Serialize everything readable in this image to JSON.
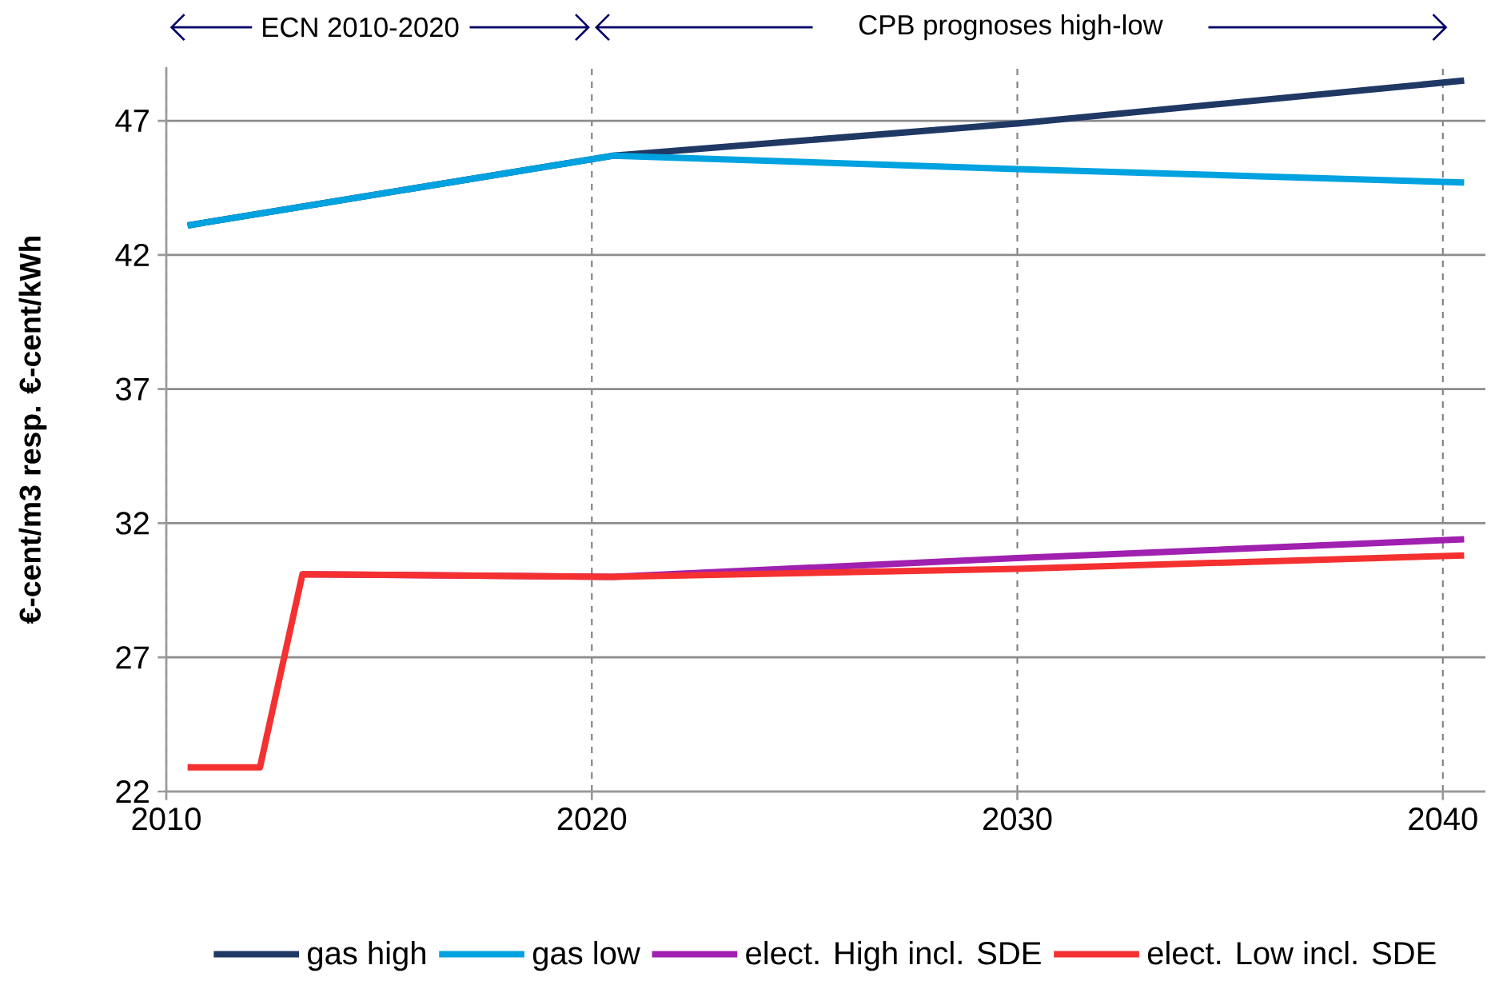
{
  "chart_data": {
    "type": "line",
    "ylabel": "€-cent/m3 resp. €-cent/kWh",
    "annotations": [
      "ECN  2010-2020",
      "CPB prognoses high-low"
    ],
    "xlim": [
      2010,
      2041
    ],
    "ylim": [
      22,
      49
    ],
    "xticks": [
      2010,
      2020,
      2030,
      2040
    ],
    "yticks": [
      22,
      27,
      32,
      37,
      42,
      47
    ],
    "grid": true,
    "legend": "bottom",
    "marker": "none",
    "line_style": "solid",
    "series": [
      {
        "name": "gas high",
        "color": "#1f3864",
        "x": [
          2010.5,
          2020.5,
          2030,
          2040.5
        ],
        "values": [
          43.1,
          45.7,
          46.9,
          48.5
        ]
      },
      {
        "name": "gas low",
        "color": "#00a2e0",
        "x": [
          2010.5,
          2020.5,
          2030,
          2040.5
        ],
        "values": [
          43.1,
          45.7,
          45.2,
          44.7
        ]
      },
      {
        "name": "elect. High incl. SDE",
        "color": "#a020b0",
        "x": [
          2013.2,
          2020.5,
          2030,
          2040.5
        ],
        "values": [
          30.1,
          30.0,
          30.7,
          31.4
        ]
      },
      {
        "name": "elect. Low incl. SDE",
        "color": "#f53030",
        "x": [
          2010.5,
          2012.2,
          2013.2,
          2020.5,
          2030,
          2040.5
        ],
        "values": [
          22.9,
          22.9,
          30.1,
          30.0,
          30.3,
          30.8
        ]
      }
    ]
  }
}
